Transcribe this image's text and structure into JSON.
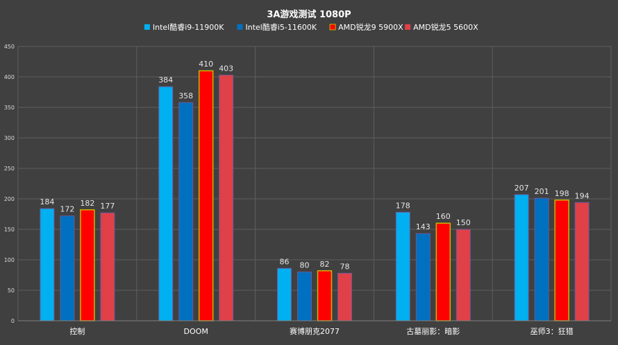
{
  "chart_data": {
    "type": "bar",
    "title": "3A游戏测试 1080P",
    "categories": [
      "控制",
      "DOOM",
      "赛博朋克2077",
      "古墓丽影：暗影",
      "巫师3：狂猎"
    ],
    "series": [
      {
        "name": "Intel酷睿i9-11900K",
        "color": "#00B0F0",
        "values": [
          184,
          384,
          86,
          178,
          207
        ]
      },
      {
        "name": "Intel酷睿i5-11600K",
        "color": "#0070C0",
        "values": [
          172,
          358,
          80,
          143,
          201
        ]
      },
      {
        "name": "AMD锐龙9 5900X",
        "color": "#FF0000",
        "border": "#C8B400",
        "values": [
          182,
          410,
          82,
          160,
          198
        ]
      },
      {
        "name": "AMD锐龙5 5600X",
        "color": "#E04048",
        "values": [
          177,
          403,
          78,
          150,
          194
        ]
      }
    ],
    "ylim": [
      0,
      450
    ],
    "yticks": [
      0,
      50,
      100,
      150,
      200,
      250,
      300,
      350,
      400,
      450
    ],
    "xlabel": "",
    "ylabel": "",
    "grid": true,
    "legend": "top-center"
  }
}
